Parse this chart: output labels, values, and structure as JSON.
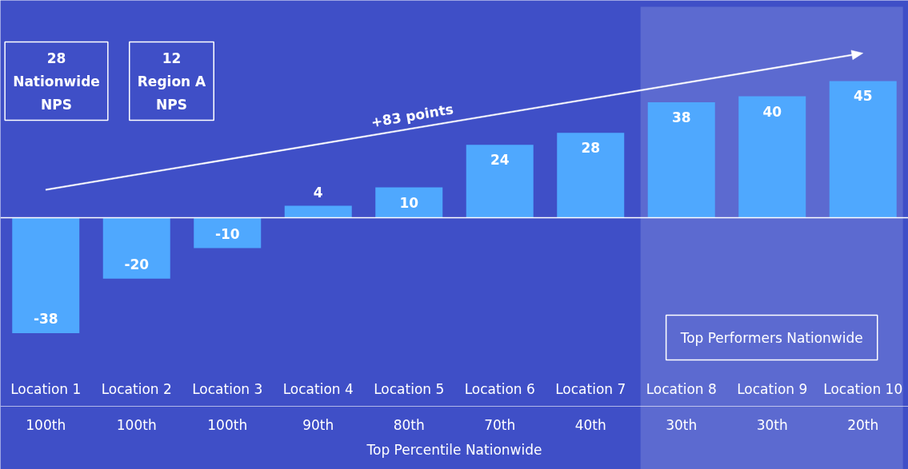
{
  "chart_data": {
    "type": "bar",
    "xlabel": "Top Percentile Nationwide",
    "categories": [
      "Location 1",
      "Location 2",
      "Location 3",
      "Location 4",
      "Location 5",
      "Location 6",
      "Location 7",
      "Location 8",
      "Location 9",
      "Location 10"
    ],
    "values": [
      -38,
      -20,
      -10,
      4,
      10,
      24,
      28,
      38,
      40,
      45
    ],
    "color": "#4fa8fe",
    "data_labels": true,
    "bands": [
      {
        "axis": "x",
        "from": "Location 8",
        "to": "Location 10",
        "label": "Top Performers Nationwide",
        "color": "#5c6ad0"
      }
    ],
    "annotations": [
      "28\nNationwide\nNPS",
      "12\nRegion A\nNPS",
      "+83 points",
      "100th",
      "100th",
      "100th",
      "90th",
      "80th",
      "70th",
      "40th",
      "30th",
      "30th",
      "20th"
    ]
  }
}
